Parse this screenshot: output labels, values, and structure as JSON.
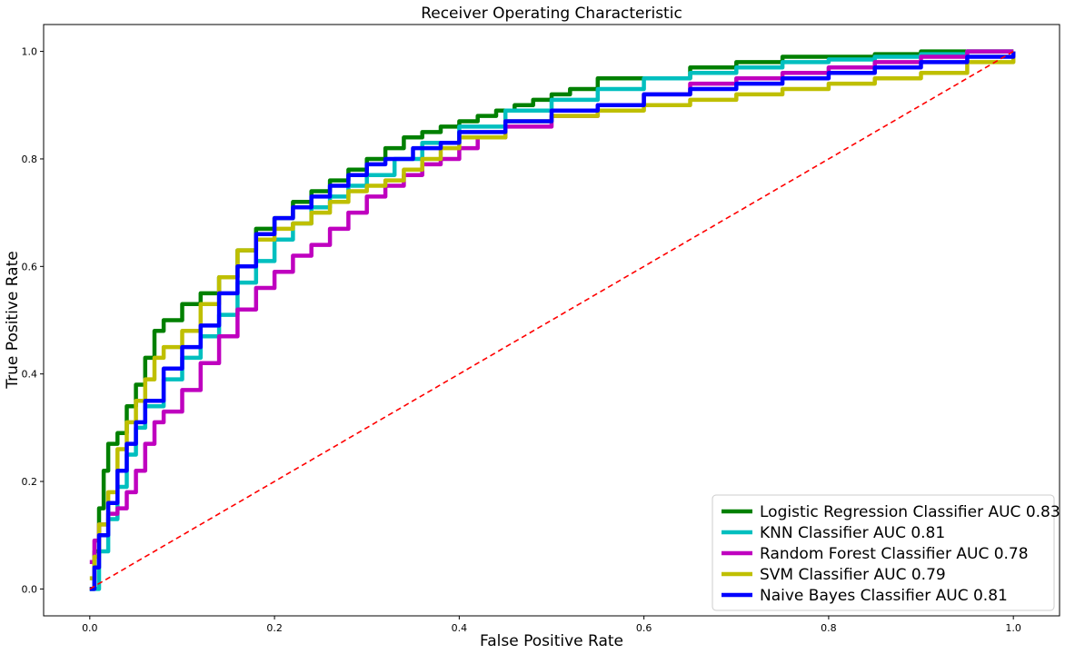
{
  "chart_data": {
    "type": "line",
    "title": "Receiver Operating Characteristic",
    "xlabel": "False Positive Rate",
    "ylabel": "True Positive Rate",
    "xlim": [
      -0.05,
      1.05
    ],
    "ylim": [
      -0.05,
      1.05
    ],
    "xticks": [
      "0.0",
      "0.2",
      "0.4",
      "0.6",
      "0.8",
      "1.0"
    ],
    "yticks": [
      "0.0",
      "0.2",
      "0.4",
      "0.6",
      "0.8",
      "1.0"
    ],
    "legend_position": "bottom-right",
    "series": [
      {
        "name": "Logistic Regression Classifier AUC 0.83",
        "color": "#008000",
        "x": [
          0.0,
          0.005,
          0.01,
          0.015,
          0.02,
          0.03,
          0.04,
          0.05,
          0.06,
          0.07,
          0.08,
          0.1,
          0.12,
          0.14,
          0.16,
          0.18,
          0.2,
          0.22,
          0.24,
          0.26,
          0.28,
          0.3,
          0.32,
          0.34,
          0.36,
          0.38,
          0.4,
          0.42,
          0.44,
          0.46,
          0.48,
          0.5,
          0.52,
          0.55,
          0.6,
          0.65,
          0.7,
          0.75,
          0.8,
          0.85,
          0.9,
          1.0
        ],
        "y": [
          0.0,
          0.07,
          0.15,
          0.22,
          0.27,
          0.29,
          0.34,
          0.38,
          0.43,
          0.48,
          0.5,
          0.53,
          0.55,
          0.58,
          0.63,
          0.67,
          0.69,
          0.72,
          0.74,
          0.76,
          0.78,
          0.8,
          0.82,
          0.84,
          0.85,
          0.86,
          0.87,
          0.88,
          0.89,
          0.9,
          0.91,
          0.92,
          0.93,
          0.95,
          0.95,
          0.97,
          0.98,
          0.99,
          0.99,
          0.995,
          1.0,
          1.0
        ]
      },
      {
        "name": "KNN Classifier AUC 0.81",
        "color": "#00BFBF",
        "x": [
          0.0,
          0.01,
          0.02,
          0.03,
          0.04,
          0.05,
          0.06,
          0.08,
          0.1,
          0.12,
          0.14,
          0.16,
          0.18,
          0.2,
          0.22,
          0.24,
          0.26,
          0.28,
          0.3,
          0.33,
          0.36,
          0.4,
          0.45,
          0.5,
          0.55,
          0.6,
          0.65,
          0.7,
          0.75,
          0.8,
          0.85,
          0.9,
          0.95,
          1.0
        ],
        "y": [
          0.0,
          0.07,
          0.13,
          0.19,
          0.25,
          0.3,
          0.34,
          0.39,
          0.43,
          0.47,
          0.51,
          0.57,
          0.61,
          0.65,
          0.68,
          0.71,
          0.73,
          0.75,
          0.77,
          0.8,
          0.83,
          0.86,
          0.89,
          0.91,
          0.93,
          0.95,
          0.96,
          0.97,
          0.98,
          0.985,
          0.99,
          0.995,
          1.0,
          1.0
        ]
      },
      {
        "name": "Random Forest Classifier AUC 0.78",
        "color": "#BF00BF",
        "x": [
          0.0,
          0.005,
          0.01,
          0.02,
          0.03,
          0.04,
          0.05,
          0.06,
          0.07,
          0.08,
          0.1,
          0.12,
          0.14,
          0.16,
          0.18,
          0.2,
          0.22,
          0.24,
          0.26,
          0.28,
          0.3,
          0.32,
          0.34,
          0.36,
          0.38,
          0.4,
          0.42,
          0.45,
          0.5,
          0.55,
          0.6,
          0.65,
          0.7,
          0.75,
          0.8,
          0.85,
          0.9,
          0.95,
          1.0
        ],
        "y": [
          0.05,
          0.09,
          0.12,
          0.14,
          0.15,
          0.18,
          0.22,
          0.27,
          0.31,
          0.33,
          0.37,
          0.42,
          0.47,
          0.52,
          0.56,
          0.59,
          0.62,
          0.64,
          0.67,
          0.7,
          0.73,
          0.75,
          0.77,
          0.79,
          0.8,
          0.82,
          0.84,
          0.86,
          0.88,
          0.9,
          0.92,
          0.94,
          0.95,
          0.96,
          0.97,
          0.98,
          0.99,
          1.0,
          1.0
        ]
      },
      {
        "name": "SVM Classifier AUC 0.79",
        "color": "#BFBF00",
        "x": [
          0.0,
          0.005,
          0.01,
          0.02,
          0.03,
          0.04,
          0.05,
          0.06,
          0.07,
          0.08,
          0.1,
          0.12,
          0.14,
          0.16,
          0.18,
          0.2,
          0.22,
          0.24,
          0.26,
          0.28,
          0.3,
          0.32,
          0.34,
          0.36,
          0.38,
          0.4,
          0.45,
          0.5,
          0.55,
          0.6,
          0.65,
          0.7,
          0.75,
          0.8,
          0.85,
          0.9,
          0.95,
          1.0
        ],
        "y": [
          0.02,
          0.06,
          0.12,
          0.18,
          0.26,
          0.31,
          0.35,
          0.39,
          0.43,
          0.45,
          0.48,
          0.53,
          0.58,
          0.63,
          0.65,
          0.67,
          0.68,
          0.7,
          0.72,
          0.74,
          0.75,
          0.76,
          0.78,
          0.8,
          0.82,
          0.84,
          0.87,
          0.88,
          0.89,
          0.9,
          0.91,
          0.92,
          0.93,
          0.94,
          0.95,
          0.96,
          0.98,
          1.0
        ]
      },
      {
        "name": "Naive Bayes Classifier AUC 0.81",
        "color": "#0000FF",
        "x": [
          0.0,
          0.005,
          0.01,
          0.02,
          0.03,
          0.04,
          0.05,
          0.06,
          0.08,
          0.1,
          0.12,
          0.14,
          0.16,
          0.18,
          0.2,
          0.22,
          0.24,
          0.26,
          0.28,
          0.3,
          0.32,
          0.35,
          0.38,
          0.4,
          0.45,
          0.5,
          0.55,
          0.6,
          0.65,
          0.7,
          0.75,
          0.8,
          0.85,
          0.9,
          0.95,
          1.0
        ],
        "y": [
          0.0,
          0.04,
          0.1,
          0.16,
          0.22,
          0.27,
          0.31,
          0.35,
          0.41,
          0.45,
          0.49,
          0.55,
          0.6,
          0.66,
          0.69,
          0.71,
          0.73,
          0.75,
          0.77,
          0.79,
          0.8,
          0.82,
          0.83,
          0.85,
          0.87,
          0.89,
          0.9,
          0.92,
          0.93,
          0.94,
          0.95,
          0.96,
          0.97,
          0.98,
          0.99,
          1.0
        ]
      },
      {
        "name": "Random baseline",
        "color": "#FF0000",
        "dashed": true,
        "in_legend": false,
        "x": [
          0.0,
          1.0
        ],
        "y": [
          0.0,
          1.0
        ]
      }
    ]
  }
}
